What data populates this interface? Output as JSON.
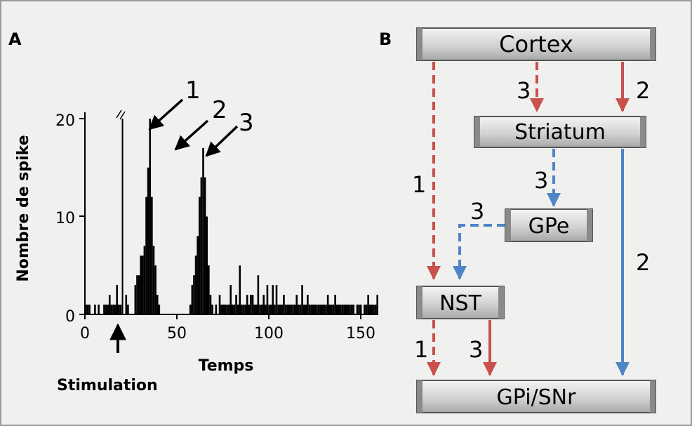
{
  "panel_a": {
    "label": "A",
    "ylabel": "Nombre de spike",
    "xlabel": "Temps",
    "stimulation_label": "Stimulation",
    "x_ticks": [
      "0",
      "50",
      "100",
      "150"
    ],
    "y_ticks": [
      "0",
      "10",
      "20"
    ],
    "peak_labels": [
      "1",
      "2",
      "3"
    ]
  },
  "panel_b": {
    "label": "B",
    "boxes": {
      "cortex": "Cortex",
      "striatum": "Striatum",
      "gpe": "GPe",
      "nst": "NST",
      "gpi": "GPi/SNr"
    },
    "path_labels": {
      "cortex_nst": "1",
      "cortex_striatum": "3",
      "cortex_striatum_direct": "2",
      "striatum_gpe": "3",
      "gpe_nst": "3",
      "striatum_gpi": "2",
      "nst_gpi_a": "1",
      "nst_gpi_b": "3"
    },
    "colors": {
      "excitatory": "#c9504c",
      "inhibitory": "#4f85c6"
    }
  },
  "chart_data": {
    "type": "bar",
    "title": "",
    "xlabel": "Temps",
    "ylabel": "Nombre de spike",
    "xlim": [
      0,
      160
    ],
    "ylim": [
      0,
      20
    ],
    "stimulation_time": 19,
    "x": [
      0,
      1,
      2,
      3,
      4,
      5,
      6,
      7,
      8,
      9,
      10,
      11,
      12,
      13,
      14,
      15,
      16,
      17,
      18,
      19,
      20,
      21,
      22,
      23,
      24,
      25,
      26,
      27,
      28,
      29,
      30,
      31,
      32,
      33,
      34,
      35,
      36,
      37,
      38,
      39,
      40,
      41,
      42,
      43,
      44,
      45,
      46,
      47,
      48,
      49,
      50,
      51,
      52,
      53,
      54,
      55,
      56,
      57,
      58,
      59,
      60,
      61,
      62,
      63,
      64,
      65,
      66,
      67,
      68,
      69,
      70,
      71,
      72,
      73,
      74,
      75,
      76,
      77,
      78,
      79,
      80,
      81,
      82,
      83,
      84,
      85,
      86,
      87,
      88,
      89,
      90,
      91,
      92,
      93,
      94,
      95,
      96,
      97,
      98,
      99,
      100,
      101,
      102,
      103,
      104,
      105,
      106,
      107,
      108,
      109,
      110,
      111,
      112,
      113,
      114,
      115,
      116,
      117,
      118,
      119,
      120,
      121,
      122,
      123,
      124,
      125,
      126,
      127,
      128,
      129,
      130,
      131,
      132,
      133,
      134,
      135,
      136,
      137,
      138,
      139,
      140,
      141,
      142,
      143,
      144,
      145,
      146,
      147,
      148,
      149,
      150,
      151,
      152,
      153,
      154,
      155,
      156,
      157,
      158,
      159
    ],
    "values": [
      1,
      1,
      1,
      0,
      0,
      1,
      0,
      1,
      0,
      0,
      1,
      1,
      1,
      2,
      1,
      1,
      1,
      3,
      1,
      1,
      20,
      0,
      2,
      1,
      0,
      0,
      0,
      3,
      4,
      4,
      6,
      6,
      7,
      12,
      15,
      20,
      12,
      7,
      5,
      2,
      1,
      0,
      0,
      0,
      0,
      0,
      0,
      0,
      0,
      0,
      0,
      0,
      0,
      0,
      0,
      0,
      0,
      1,
      3,
      4,
      6,
      8,
      12,
      14,
      17,
      14,
      10,
      5,
      2,
      1,
      0,
      1,
      0,
      2,
      1,
      1,
      1,
      1,
      1,
      3,
      1,
      1,
      2,
      1,
      5,
      1,
      1,
      1,
      2,
      1,
      2,
      2,
      1,
      1,
      4,
      1,
      1,
      2,
      1,
      3,
      1,
      1,
      3,
      1,
      3,
      1,
      1,
      1,
      2,
      1,
      1,
      1,
      1,
      1,
      1,
      2,
      1,
      1,
      3,
      1,
      1,
      2,
      1,
      1,
      1,
      1,
      1,
      1,
      1,
      1,
      1,
      1,
      2,
      1,
      1,
      1,
      2,
      1,
      1,
      1,
      1,
      1,
      1,
      1,
      1,
      1,
      1,
      0,
      1,
      1,
      1,
      0,
      1,
      1,
      2,
      1,
      1,
      1,
      1,
      2
    ],
    "annotations": [
      "1",
      "2",
      "3"
    ]
  }
}
